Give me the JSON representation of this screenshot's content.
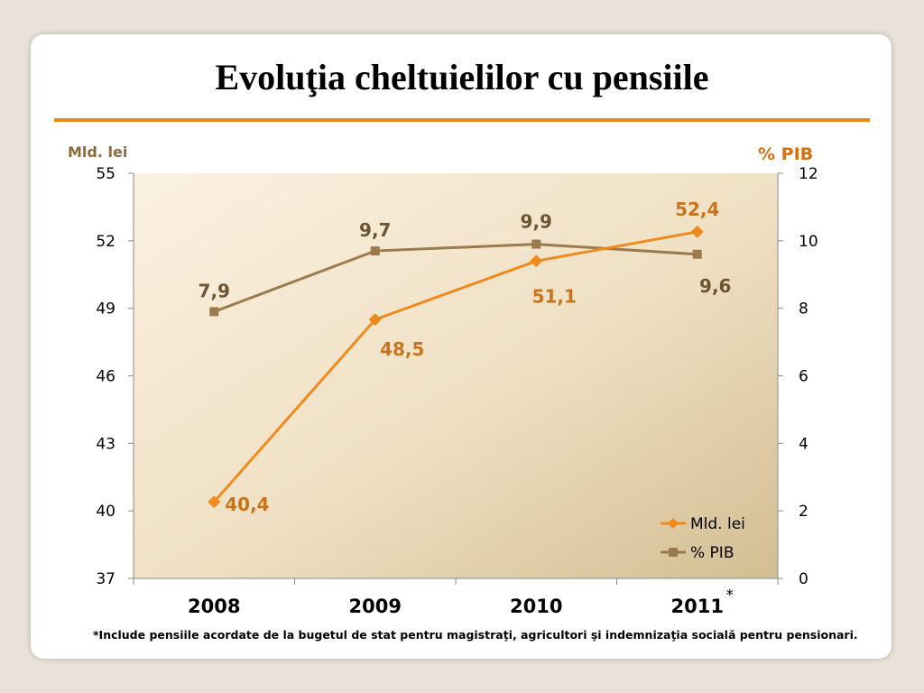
{
  "title": "Evoluţia cheltuielilor cu pensiile",
  "footnote": "*Include pensiile acordate de la bugetul de stat pentru magistraţi, agricultori şi indemnizaţia socială pentru pensionari.",
  "colors": {
    "accent": "#e98a1b",
    "series_lei": "#f08a1c",
    "series_pib": "#9b7a4e"
  },
  "chart_data": {
    "type": "line",
    "categories": [
      "2008",
      "2009",
      "2010",
      "2011"
    ],
    "category_marker": "*",
    "y_left": {
      "label": "Mld. lei",
      "ylim": [
        37,
        55
      ],
      "ticks": [
        "37",
        "40",
        "43",
        "46",
        "49",
        "52",
        "55"
      ]
    },
    "y_right": {
      "label": "% PIB",
      "ylim": [
        0,
        12
      ],
      "ticks": [
        "0",
        "2",
        "4",
        "6",
        "8",
        "10",
        "12"
      ]
    },
    "series": [
      {
        "name": "Mld. lei",
        "axis": "left",
        "values": [
          40.4,
          48.5,
          51.1,
          52.4
        ],
        "labels": [
          "40,4",
          "48,5",
          "51,1",
          "52,4"
        ],
        "marker": "diamond"
      },
      {
        "name": "% PIB",
        "axis": "right",
        "values": [
          7.9,
          9.7,
          9.9,
          9.6
        ],
        "labels": [
          "7,9",
          "9,7",
          "9,9",
          "9,6"
        ],
        "marker": "square"
      }
    ],
    "legend": "bottom-right",
    "grid": false
  }
}
